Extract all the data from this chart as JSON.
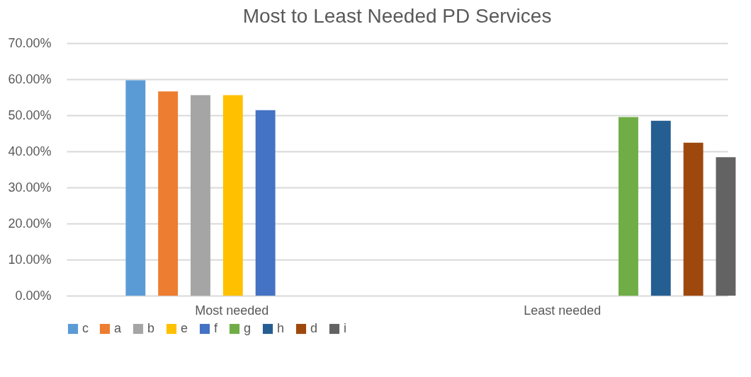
{
  "chart_data": {
    "type": "bar",
    "title": "Most to Least Needed PD Services",
    "categories": [
      "Most needed",
      "Least needed"
    ],
    "series": [
      {
        "name": "c",
        "color": "#5b9bd5",
        "values": [
          59.7,
          null
        ]
      },
      {
        "name": "a",
        "color": "#ed7d31",
        "values": [
          56.6,
          null
        ]
      },
      {
        "name": "b",
        "color": "#a5a5a5",
        "values": [
          55.6,
          null
        ]
      },
      {
        "name": "e",
        "color": "#ffc000",
        "values": [
          55.6,
          null
        ]
      },
      {
        "name": "f",
        "color": "#4472c4",
        "values": [
          51.4,
          null
        ]
      },
      {
        "name": "g",
        "color": "#70ad47",
        "values": [
          null,
          49.5
        ]
      },
      {
        "name": "h",
        "color": "#255e91",
        "values": [
          null,
          48.5
        ]
      },
      {
        "name": "d",
        "color": "#9e480e",
        "values": [
          null,
          42.4
        ]
      },
      {
        "name": "i",
        "color": "#636363",
        "values": [
          null,
          38.4
        ]
      }
    ],
    "ylim": [
      0,
      70
    ],
    "yticks": [
      {
        "value": 0,
        "label": "0.00%"
      },
      {
        "value": 10,
        "label": "10.00%"
      },
      {
        "value": 20,
        "label": "20.00%"
      },
      {
        "value": 30,
        "label": "30.00%"
      },
      {
        "value": 40,
        "label": "40.00%"
      },
      {
        "value": 50,
        "label": "50.00%"
      },
      {
        "value": 60,
        "label": "60.00%"
      },
      {
        "value": 70,
        "label": "70.00%"
      }
    ],
    "grid": "y",
    "legend": "bottom"
  }
}
